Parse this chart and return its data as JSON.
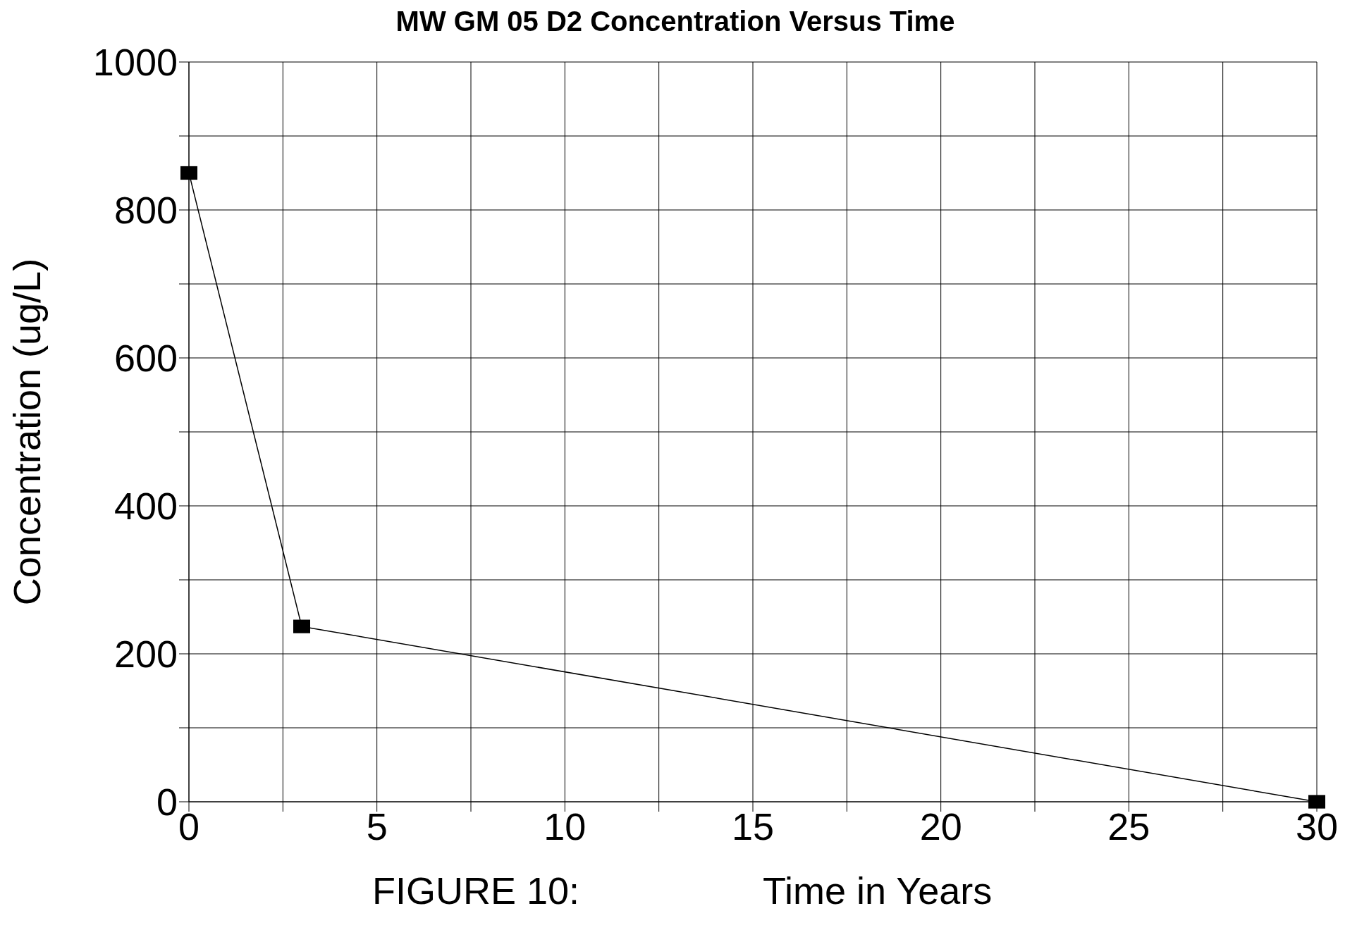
{
  "chart_data": {
    "type": "line",
    "title": "MW GM 05 D2 Concentration Versus Time",
    "xlabel": "Time in Years",
    "ylabel": "Concentration (ug/L)",
    "annotations": [
      "FIGURE 10:"
    ],
    "x": [
      0,
      3,
      30
    ],
    "series": [
      {
        "color": "#000000",
        "values": [
          850,
          237,
          0
        ]
      }
    ],
    "xlim": [
      0,
      30
    ],
    "xticks": [
      0,
      {
        "value": 2.5,
        "label": null
      },
      5,
      {
        "value": 7.5,
        "label": null
      },
      10,
      {
        "value": 12.5,
        "label": null
      },
      15,
      {
        "value": 17.5,
        "label": null
      },
      20,
      {
        "value": 22.5,
        "label": null
      },
      25,
      {
        "value": 27.5,
        "label": null
      },
      30
    ],
    "ylim": [
      0,
      1000
    ],
    "yticks": [
      0,
      {
        "value": 100,
        "label": null
      },
      200,
      {
        "value": 300,
        "label": null
      },
      400,
      {
        "value": 500,
        "label": null
      },
      600,
      {
        "value": 700,
        "label": null
      },
      800,
      {
        "value": 900,
        "label": null
      },
      1000
    ],
    "grid": true,
    "marker": "square",
    "line_style": "solid",
    "legend": false
  }
}
